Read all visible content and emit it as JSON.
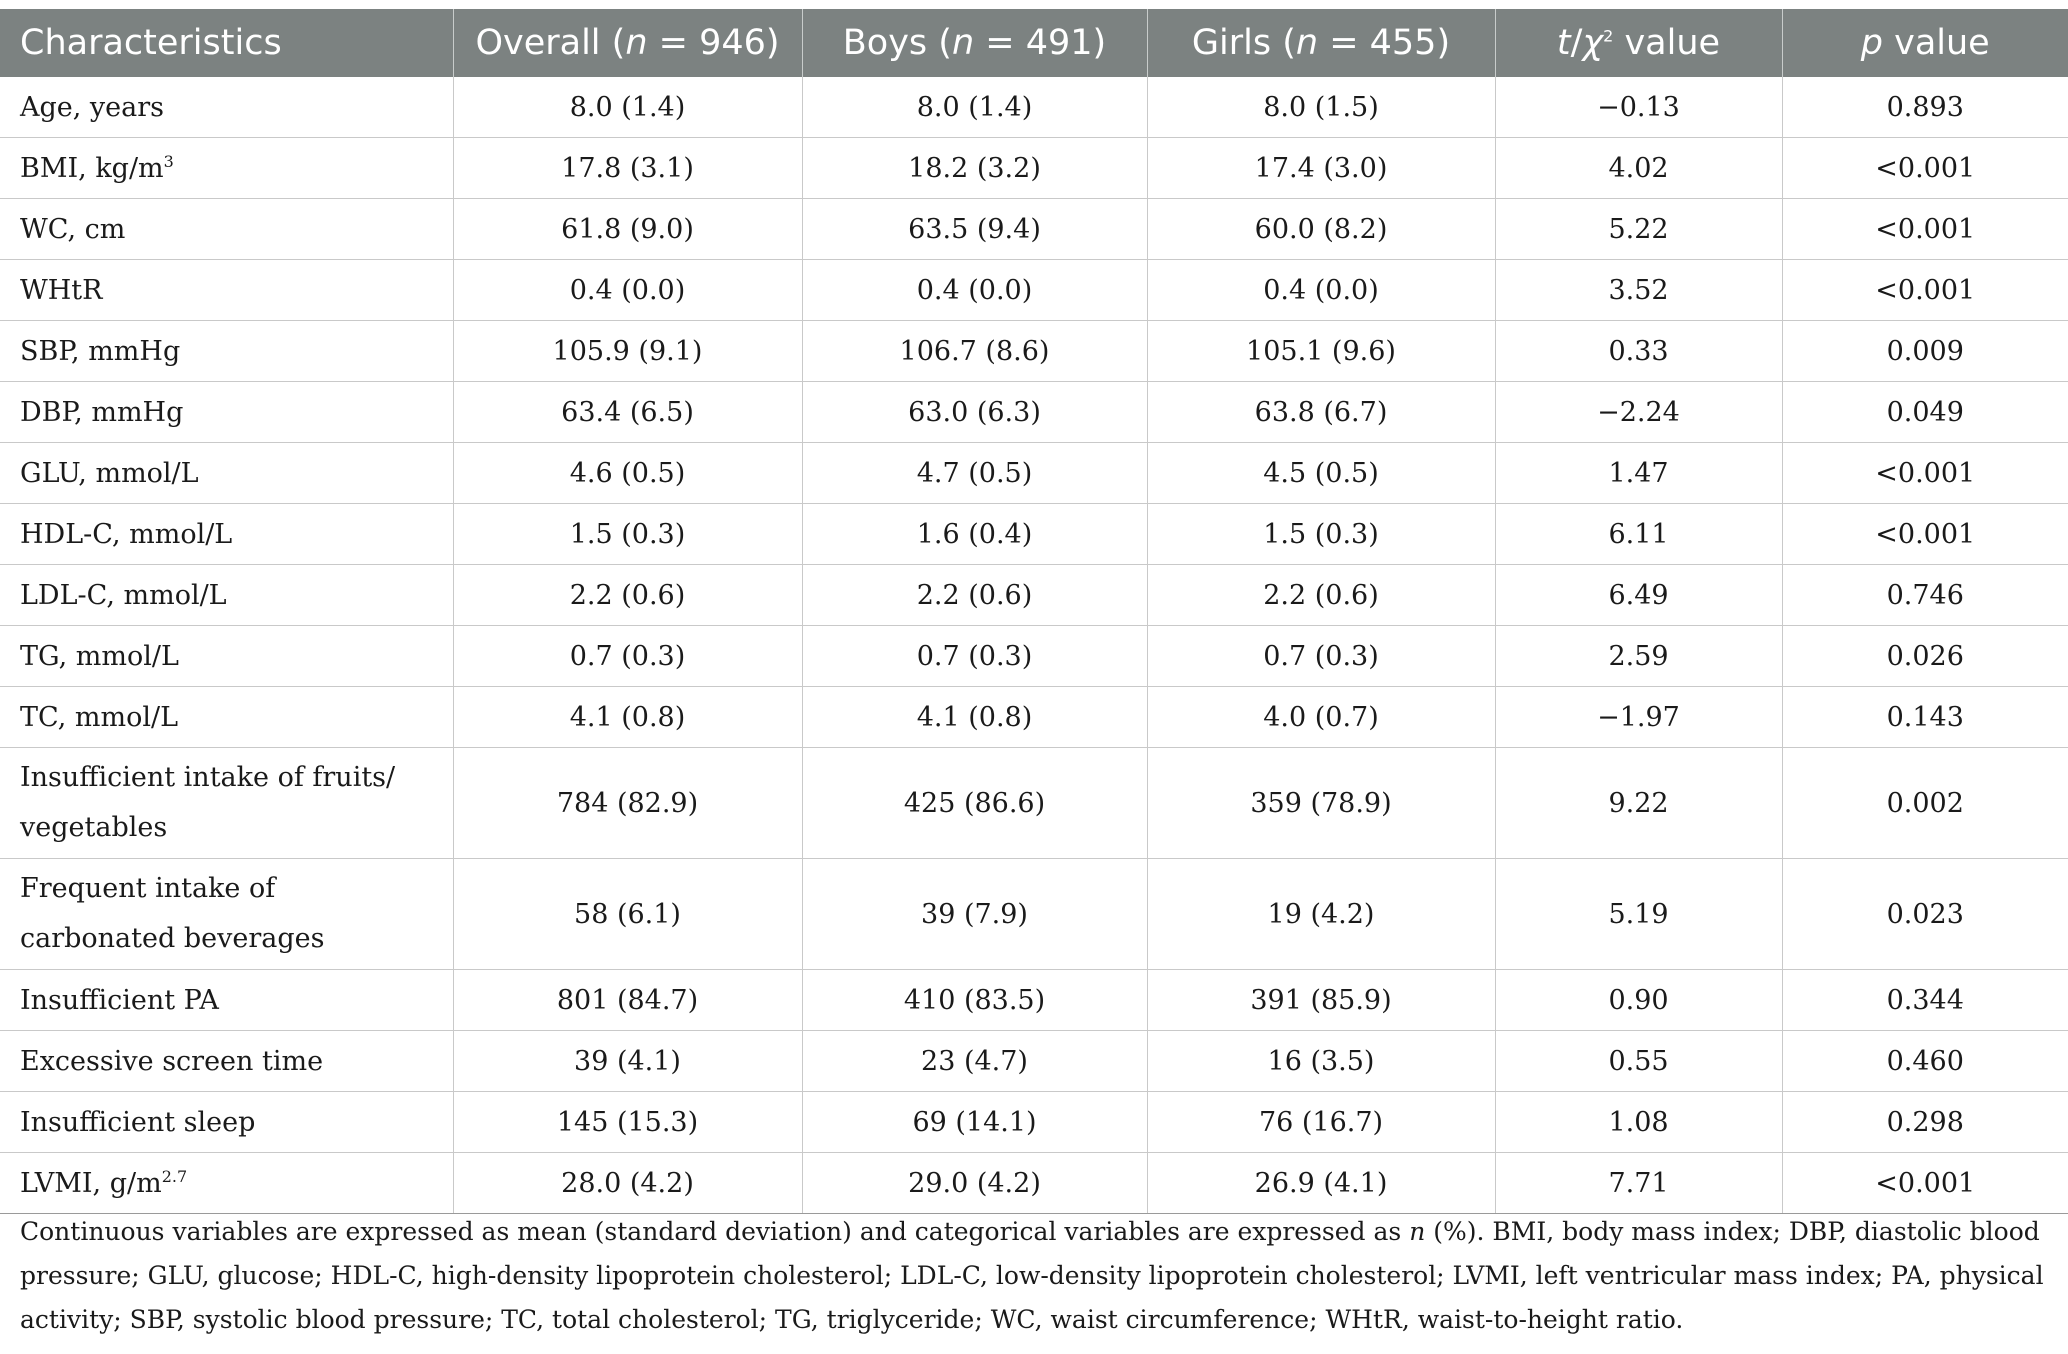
{
  "header": {
    "characteristics": "Characteristics",
    "overall_prefix": "Overall (",
    "overall_n": "n",
    "overall_suffix": " = 946)",
    "boys_prefix": "Boys (",
    "boys_n": "n",
    "boys_suffix": " = 491)",
    "girls_prefix": "Girls (",
    "girls_n": "n",
    "girls_suffix": " = 455)",
    "stat_t": "t",
    "stat_sep": "/",
    "stat_chi": "χ",
    "stat_sup": "2",
    "stat_suffix": " value",
    "p_p": "p",
    "p_suffix": " value"
  },
  "rows": [
    {
      "label": "Age, years",
      "sup": "",
      "overall": "8.0 (1.4)",
      "boys": "8.0 (1.4)",
      "girls": "8.0 (1.5)",
      "stat": "−0.13",
      "p": "0.893"
    },
    {
      "label": "BMI, kg/m",
      "sup": "3",
      "overall": "17.8 (3.1)",
      "boys": "18.2 (3.2)",
      "girls": "17.4 (3.0)",
      "stat": "4.02",
      "p": "<0.001"
    },
    {
      "label": "WC, cm",
      "sup": "",
      "overall": "61.8 (9.0)",
      "boys": "63.5 (9.4)",
      "girls": "60.0 (8.2)",
      "stat": "5.22",
      "p": "<0.001"
    },
    {
      "label": "WHtR",
      "sup": "",
      "overall": "0.4 (0.0)",
      "boys": "0.4 (0.0)",
      "girls": "0.4 (0.0)",
      "stat": "3.52",
      "p": "<0.001"
    },
    {
      "label": "SBP, mmHg",
      "sup": "",
      "overall": "105.9 (9.1)",
      "boys": "106.7 (8.6)",
      "girls": "105.1 (9.6)",
      "stat": "0.33",
      "p": "0.009"
    },
    {
      "label": "DBP, mmHg",
      "sup": "",
      "overall": "63.4 (6.5)",
      "boys": "63.0 (6.3)",
      "girls": "63.8 (6.7)",
      "stat": "−2.24",
      "p": "0.049"
    },
    {
      "label": "GLU, mmol/L",
      "sup": "",
      "overall": "4.6 (0.5)",
      "boys": "4.7 (0.5)",
      "girls": "4.5 (0.5)",
      "stat": "1.47",
      "p": "<0.001"
    },
    {
      "label": "HDL-C, mmol/L",
      "sup": "",
      "overall": "1.5 (0.3)",
      "boys": "1.6 (0.4)",
      "girls": "1.5 (0.3)",
      "stat": "6.11",
      "p": "<0.001"
    },
    {
      "label": "LDL-C, mmol/L",
      "sup": "",
      "overall": "2.2 (0.6)",
      "boys": "2.2 (0.6)",
      "girls": "2.2 (0.6)",
      "stat": "6.49",
      "p": "0.746"
    },
    {
      "label": "TG, mmol/L",
      "sup": "",
      "overall": "0.7 (0.3)",
      "boys": "0.7 (0.3)",
      "girls": "0.7 (0.3)",
      "stat": "2.59",
      "p": "0.026"
    },
    {
      "label": "TC, mmol/L",
      "sup": "",
      "overall": "4.1 (0.8)",
      "boys": "4.1 (0.8)",
      "girls": "4.0 (0.7)",
      "stat": "−1.97",
      "p": "0.143"
    },
    {
      "label": "Insufficient intake of fruits/ vegetables",
      "sup": "",
      "overall": "784 (82.9)",
      "boys": "425 (86.6)",
      "girls": "359 (78.9)",
      "stat": "9.22",
      "p": "0.002"
    },
    {
      "label": "Frequent intake of carbonated beverages",
      "sup": "",
      "overall": "58 (6.1)",
      "boys": "39 (7.9)",
      "girls": "19 (4.2)",
      "stat": "5.19",
      "p": "0.023"
    },
    {
      "label": "Insufficient PA",
      "sup": "",
      "overall": "801 (84.7)",
      "boys": "410 (83.5)",
      "girls": "391 (85.9)",
      "stat": "0.90",
      "p": "0.344"
    },
    {
      "label": "Excessive screen time",
      "sup": "",
      "overall": "39 (4.1)",
      "boys": "23 (4.7)",
      "girls": "16 (3.5)",
      "stat": "0.55",
      "p": "0.460"
    },
    {
      "label": "Insufficient sleep",
      "sup": "",
      "overall": "145 (15.3)",
      "boys": "69 (14.1)",
      "girls": "76 (16.7)",
      "stat": "1.08",
      "p": "0.298"
    },
    {
      "label": "LVMI, g/m",
      "sup": "2.7",
      "overall": "28.0 (4.2)",
      "boys": "29.0 (4.2)",
      "girls": "26.9 (4.1)",
      "stat": "7.71",
      "p": "<0.001"
    }
  ],
  "footnote": {
    "part1": "Continuous variables are expressed as mean (standard deviation) and categorical variables are expressed as ",
    "n": "n",
    "part2": " (%). BMI, body mass index; DBP, diastolic blood pressure; GLU, glucose; HDL-C, high-density lipoprotein cholesterol; LDL-C, low-density lipoprotein cholesterol; LVMI, left ventricular mass index; PA, physical activity; SBP, systolic blood pressure; TC, total cholesterol; TG, triglyceride; WC, waist circumference; WHtR, waist-to-height ratio."
  }
}
